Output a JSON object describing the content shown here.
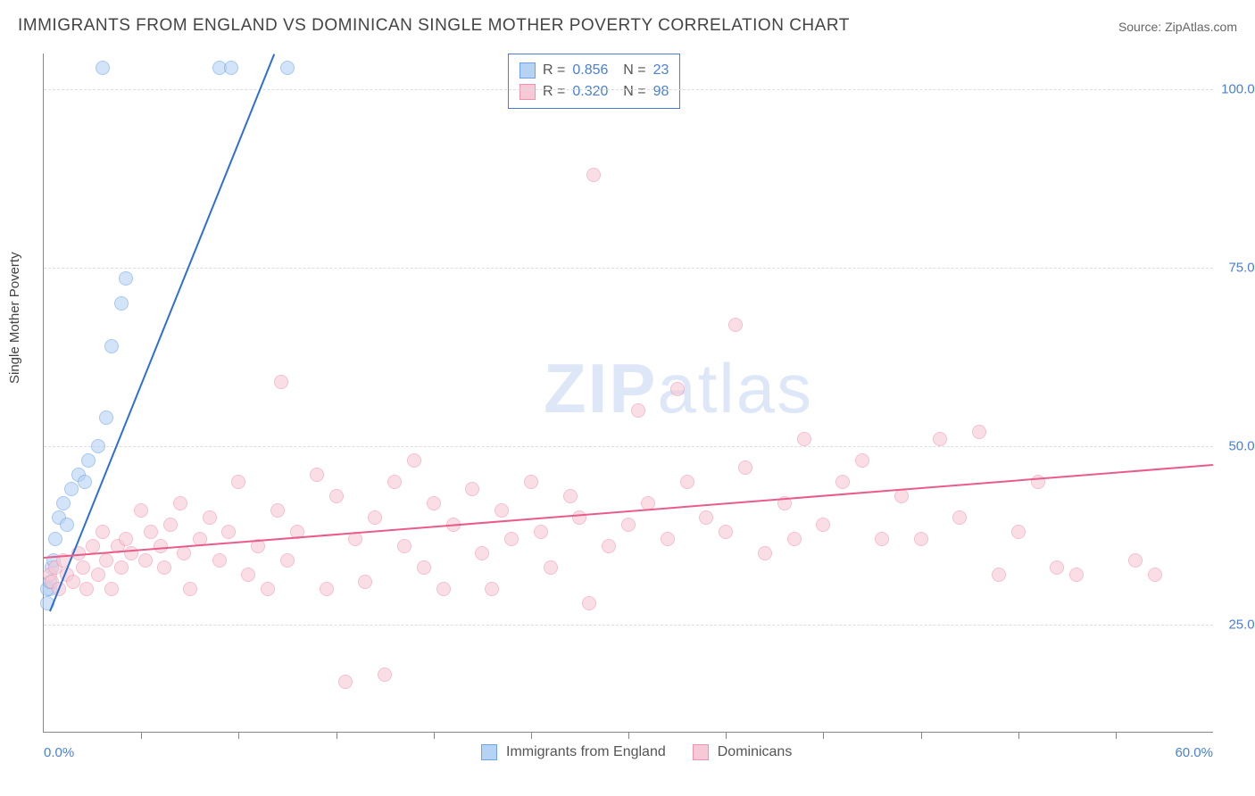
{
  "title": "IMMIGRANTS FROM ENGLAND VS DOMINICAN SINGLE MOTHER POVERTY CORRELATION CHART",
  "source": "Source: ZipAtlas.com",
  "ylabel": "Single Mother Poverty",
  "watermark_bold": "ZIP",
  "watermark_rest": "atlas",
  "chart": {
    "type": "scatter",
    "xlim": [
      0,
      60
    ],
    "ylim": [
      10,
      105
    ],
    "xticks": [
      0,
      60
    ],
    "xtick_labels": [
      "0.0%",
      "60.0%"
    ],
    "xtick_minor": [
      5,
      10,
      15,
      20,
      25,
      30,
      35,
      40,
      45,
      50,
      55
    ],
    "yticks": [
      25,
      50,
      75,
      100
    ],
    "ytick_labels": [
      "25.0%",
      "50.0%",
      "75.0%",
      "100.0%"
    ],
    "background_color": "#ffffff",
    "grid_color": "#dddddd",
    "grid_dash": true,
    "marker_radius": 7,
    "marker_border_width": 1,
    "line_width": 2,
    "font_family": "Arial",
    "title_fontsize": 19,
    "label_fontsize": 15,
    "tick_label_color": "#4a7fd4"
  },
  "series": [
    {
      "name": "Immigrants from England",
      "fill_color": "#b6d3f4",
      "border_color": "#6da3e8",
      "line_color": "#2e6fd4",
      "fill_opacity": 0.6,
      "R": "0.856",
      "N": "23",
      "trend": {
        "x1": 0.3,
        "y1": 27,
        "x2": 11.8,
        "y2": 105
      },
      "points": [
        [
          0.2,
          28
        ],
        [
          0.3,
          30
        ],
        [
          0.4,
          33
        ],
        [
          0.5,
          34
        ],
        [
          0.2,
          30
        ],
        [
          0.3,
          31
        ],
        [
          0.6,
          37
        ],
        [
          0.8,
          40
        ],
        [
          1.0,
          42
        ],
        [
          1.2,
          39
        ],
        [
          1.4,
          44
        ],
        [
          1.8,
          46
        ],
        [
          2.1,
          45
        ],
        [
          2.3,
          48
        ],
        [
          2.8,
          50
        ],
        [
          3.2,
          54
        ],
        [
          3.5,
          64
        ],
        [
          4.0,
          70
        ],
        [
          4.2,
          73.5
        ],
        [
          3.0,
          103
        ],
        [
          9.0,
          103
        ],
        [
          9.6,
          103
        ],
        [
          12.5,
          103
        ]
      ]
    },
    {
      "name": "Dominicans",
      "fill_color": "#f7c9d6",
      "border_color": "#ef94ae",
      "line_color": "#e95c8a",
      "fill_opacity": 0.6,
      "R": "0.320",
      "N": "98",
      "trend": {
        "x1": 0,
        "y1": 34.5,
        "x2": 60,
        "y2": 47.5
      },
      "points": [
        [
          0.3,
          32
        ],
        [
          0.4,
          31
        ],
        [
          0.6,
          33
        ],
        [
          0.8,
          30
        ],
        [
          1.0,
          34
        ],
        [
          1.2,
          32
        ],
        [
          1.5,
          31
        ],
        [
          1.8,
          35
        ],
        [
          2.0,
          33
        ],
        [
          2.2,
          30
        ],
        [
          2.5,
          36
        ],
        [
          2.8,
          32
        ],
        [
          3.0,
          38
        ],
        [
          3.2,
          34
        ],
        [
          3.5,
          30
        ],
        [
          3.8,
          36
        ],
        [
          4.0,
          33
        ],
        [
          4.2,
          37
        ],
        [
          4.5,
          35
        ],
        [
          5.0,
          41
        ],
        [
          5.2,
          34
        ],
        [
          5.5,
          38
        ],
        [
          6.0,
          36
        ],
        [
          6.2,
          33
        ],
        [
          6.5,
          39
        ],
        [
          7.0,
          42
        ],
        [
          7.2,
          35
        ],
        [
          7.5,
          30
        ],
        [
          8.0,
          37
        ],
        [
          8.5,
          40
        ],
        [
          9.0,
          34
        ],
        [
          9.5,
          38
        ],
        [
          10.0,
          45
        ],
        [
          10.5,
          32
        ],
        [
          11.0,
          36
        ],
        [
          11.5,
          30
        ],
        [
          12.0,
          41
        ],
        [
          12.2,
          59
        ],
        [
          12.5,
          34
        ],
        [
          13.0,
          38
        ],
        [
          14.0,
          46
        ],
        [
          14.5,
          30
        ],
        [
          15.0,
          43
        ],
        [
          15.5,
          17
        ],
        [
          16.0,
          37
        ],
        [
          16.5,
          31
        ],
        [
          17.0,
          40
        ],
        [
          17.5,
          18
        ],
        [
          18.0,
          45
        ],
        [
          18.5,
          36
        ],
        [
          19.0,
          48
        ],
        [
          19.5,
          33
        ],
        [
          20.0,
          42
        ],
        [
          20.5,
          30
        ],
        [
          21.0,
          39
        ],
        [
          22.0,
          44
        ],
        [
          22.5,
          35
        ],
        [
          23.0,
          30
        ],
        [
          23.5,
          41
        ],
        [
          24.0,
          37
        ],
        [
          25.0,
          45
        ],
        [
          25.5,
          38
        ],
        [
          26.0,
          33
        ],
        [
          27.0,
          43
        ],
        [
          27.5,
          40
        ],
        [
          28.0,
          28
        ],
        [
          28.2,
          88
        ],
        [
          29.0,
          36
        ],
        [
          30.0,
          39
        ],
        [
          30.5,
          55
        ],
        [
          31.0,
          42
        ],
        [
          32.0,
          37
        ],
        [
          32.5,
          58
        ],
        [
          33.0,
          45
        ],
        [
          34.0,
          40
        ],
        [
          35.0,
          38
        ],
        [
          35.5,
          67
        ],
        [
          36.0,
          47
        ],
        [
          37.0,
          35
        ],
        [
          38.0,
          42
        ],
        [
          38.5,
          37
        ],
        [
          39.0,
          51
        ],
        [
          40.0,
          39
        ],
        [
          41.0,
          45
        ],
        [
          42.0,
          48
        ],
        [
          43.0,
          37
        ],
        [
          44.0,
          43
        ],
        [
          45.0,
          37
        ],
        [
          46.0,
          51
        ],
        [
          47.0,
          40
        ],
        [
          48.0,
          52
        ],
        [
          49.0,
          32
        ],
        [
          50.0,
          38
        ],
        [
          51.0,
          45
        ],
        [
          52.0,
          33
        ],
        [
          53.0,
          32
        ],
        [
          56.0,
          34
        ],
        [
          57.0,
          32
        ]
      ]
    }
  ],
  "bottom_legend": {
    "series1": "Immigrants from England",
    "series2": "Dominicans"
  }
}
